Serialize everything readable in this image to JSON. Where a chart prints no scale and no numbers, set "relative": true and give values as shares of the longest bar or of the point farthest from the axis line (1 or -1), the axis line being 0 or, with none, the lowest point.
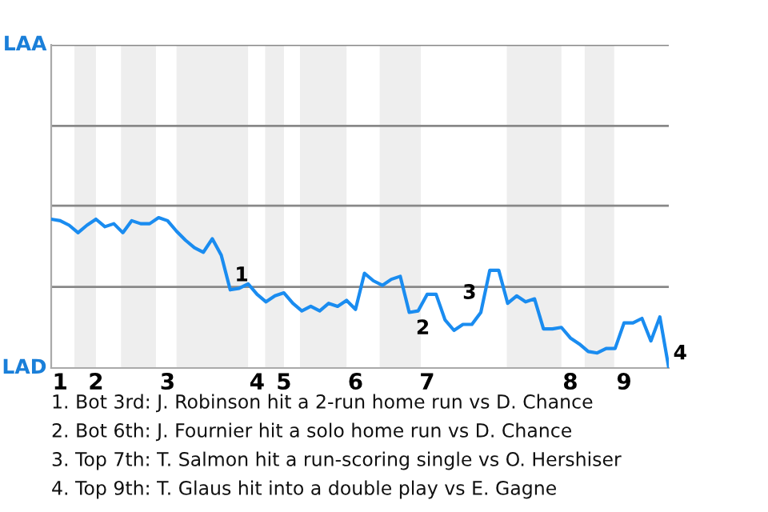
{
  "chart_data": {
    "type": "line",
    "relative": true,
    "categories": [
      null,
      "1",
      null,
      null,
      null,
      "2",
      null,
      null,
      null,
      null,
      null,
      null,
      null,
      "3",
      null,
      null,
      null,
      null,
      null,
      null,
      null,
      null,
      null,
      "4",
      null,
      null,
      "5",
      null,
      null,
      null,
      null,
      null,
      null,
      null,
      "6",
      null,
      null,
      null,
      null,
      null,
      null,
      null,
      "7",
      null,
      null,
      null,
      null,
      null,
      null,
      null,
      null,
      null,
      null,
      null,
      null,
      null,
      null,
      null,
      "8",
      null,
      null,
      null,
      null,
      null,
      "9",
      null,
      null,
      null,
      null,
      null
    ],
    "series": [
      {
        "color": "#1a8cf0",
        "values": [
          0.99,
          0.98,
          0.95,
          0.9,
          0.95,
          0.99,
          0.94,
          0.96,
          0.9,
          0.98,
          0.96,
          0.96,
          1,
          0.98,
          0.91,
          0.85,
          0.8,
          0.77,
          0.86,
          0.75,
          0.52,
          0.53,
          0.56,
          0.49,
          0.44,
          0.48,
          0.5,
          0.43,
          0.38,
          0.41,
          0.38,
          0.43,
          0.41,
          0.45,
          0.39,
          0.63,
          0.58,
          0.55,
          0.59,
          0.61,
          0.37,
          0.38,
          0.49,
          0.49,
          0.32,
          0.25,
          0.29,
          0.29,
          0.37,
          0.65,
          0.65,
          0.43,
          0.48,
          0.44,
          0.46,
          0.26,
          0.26,
          0.27,
          0.2,
          0.16,
          0.11,
          0.1,
          0.13,
          0.13,
          0.3,
          0.3,
          0.33,
          0.18,
          0.34,
          0
        ]
      }
    ],
    "ref_lines": [
      {
        "axis": "y",
        "value": 0.54,
        "color": "#888888"
      },
      {
        "axis": "y",
        "value": 1.08,
        "color": "#888888"
      },
      {
        "axis": "y",
        "value": 1.61,
        "color": "#888888"
      },
      {
        "axis": "y",
        "value": 2.15,
        "color": "#888888"
      }
    ],
    "annotations": [
      "LAA",
      "LAD",
      "1",
      "2",
      "3",
      "4",
      "1. Bot 3rd: J. Robinson hit a 2-run home run vs D. Chance",
      "2. Bot 6th: J. Fournier hit a solo home run vs D. Chance",
      "3. Top 7th: T. Salmon hit a run-scoring single vs O. Hershiser",
      "4. Top 9th: T. Glaus hit into a double play vs E. Gagne"
    ]
  }
}
